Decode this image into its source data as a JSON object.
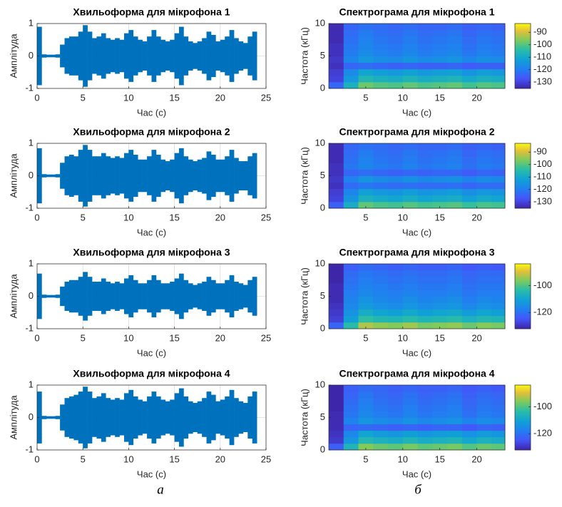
{
  "chart_data": [
    {
      "type": "waveform",
      "title": "Хвильоформа для мікрофона 1",
      "xlabel": "Час (с)",
      "ylabel": "Амплітуда",
      "color": "#0072bd",
      "xlim": [
        0,
        25
      ],
      "ylim": [
        -1,
        1
      ],
      "xticks": [
        0,
        5,
        10,
        15,
        20,
        25
      ],
      "yticks": [
        -1,
        0,
        1
      ],
      "grid": true,
      "x": [
        0,
        0.5,
        1,
        1.5,
        2,
        2.5,
        3,
        3.5,
        4,
        4.5,
        5,
        5.5,
        6,
        6.5,
        7,
        7.5,
        8,
        8.5,
        9,
        9.5,
        10,
        10.5,
        11,
        11.5,
        12,
        12.5,
        13,
        13.5,
        14,
        14.5,
        15,
        15.5,
        16,
        16.5,
        17,
        17.5,
        18,
        18.5,
        19,
        19.5,
        20,
        20.5,
        21,
        21.5,
        22,
        22.5,
        23,
        23.5
      ],
      "values": [
        0.9,
        0.05,
        0.04,
        0.04,
        0.05,
        0.35,
        0.55,
        0.6,
        0.6,
        0.75,
        0.95,
        0.75,
        0.55,
        0.6,
        0.7,
        0.55,
        0.5,
        0.55,
        0.5,
        0.7,
        0.8,
        0.6,
        0.5,
        0.45,
        0.6,
        0.8,
        0.6,
        0.5,
        0.45,
        0.5,
        0.7,
        0.9,
        0.6,
        0.45,
        0.4,
        0.45,
        0.55,
        0.75,
        0.65,
        0.45,
        0.5,
        0.6,
        0.8,
        0.55,
        0.45,
        0.4,
        0.6,
        0.75
      ]
    },
    {
      "type": "waveform",
      "title": "Хвильоформа для мікрофона 2",
      "xlabel": "Час (с)",
      "ylabel": "Амплітуда",
      "color": "#0072bd",
      "xlim": [
        0,
        25
      ],
      "ylim": [
        -1,
        1
      ],
      "xticks": [
        0,
        5,
        10,
        15,
        20,
        25
      ],
      "yticks": [
        -1,
        0,
        1
      ],
      "grid": true,
      "x": [
        0,
        0.5,
        1,
        1.5,
        2,
        2.5,
        3,
        3.5,
        4,
        4.5,
        5,
        5.5,
        6,
        6.5,
        7,
        7.5,
        8,
        8.5,
        9,
        9.5,
        10,
        10.5,
        11,
        11.5,
        12,
        12.5,
        13,
        13.5,
        14,
        14.5,
        15,
        15.5,
        16,
        16.5,
        17,
        17.5,
        18,
        18.5,
        19,
        19.5,
        20,
        20.5,
        21,
        21.5,
        22,
        22.5,
        23,
        23.5
      ],
      "values": [
        0.85,
        0.05,
        0.04,
        0.04,
        0.05,
        0.4,
        0.6,
        0.65,
        0.6,
        0.8,
        0.95,
        0.8,
        0.6,
        0.6,
        0.7,
        0.6,
        0.55,
        0.6,
        0.55,
        0.7,
        0.8,
        0.65,
        0.5,
        0.5,
        0.6,
        0.8,
        0.65,
        0.5,
        0.45,
        0.5,
        0.7,
        0.85,
        0.6,
        0.5,
        0.45,
        0.5,
        0.55,
        0.75,
        0.65,
        0.5,
        0.5,
        0.6,
        0.8,
        0.55,
        0.45,
        0.45,
        0.6,
        0.7
      ]
    },
    {
      "type": "waveform",
      "title": "Хвильоформа для мікрофона 3",
      "xlabel": "Час (с)",
      "ylabel": "Амплітуда",
      "color": "#0072bd",
      "xlim": [
        0,
        25
      ],
      "ylim": [
        -1,
        1
      ],
      "xticks": [
        0,
        5,
        10,
        15,
        20,
        25
      ],
      "yticks": [
        -1,
        0,
        1
      ],
      "grid": true,
      "x": [
        0,
        0.5,
        1,
        1.5,
        2,
        2.5,
        3,
        3.5,
        4,
        4.5,
        5,
        5.5,
        6,
        6.5,
        7,
        7.5,
        8,
        8.5,
        9,
        9.5,
        10,
        10.5,
        11,
        11.5,
        12,
        12.5,
        13,
        13.5,
        14,
        14.5,
        15,
        15.5,
        16,
        16.5,
        17,
        17.5,
        18,
        18.5,
        19,
        19.5,
        20,
        20.5,
        21,
        21.5,
        22,
        22.5,
        23,
        23.5
      ],
      "values": [
        0.7,
        0.05,
        0.04,
        0.04,
        0.05,
        0.3,
        0.45,
        0.5,
        0.5,
        0.6,
        0.75,
        0.6,
        0.45,
        0.45,
        0.55,
        0.45,
        0.4,
        0.45,
        0.4,
        0.55,
        0.65,
        0.5,
        0.4,
        0.4,
        0.5,
        0.65,
        0.5,
        0.4,
        0.4,
        0.45,
        0.55,
        0.7,
        0.5,
        0.4,
        0.35,
        0.4,
        0.45,
        0.6,
        0.5,
        0.4,
        0.4,
        0.5,
        0.65,
        0.45,
        0.4,
        0.35,
        0.5,
        0.6
      ]
    },
    {
      "type": "waveform",
      "title": "Хвильоформа для мікрофона 4",
      "xlabel": "Час (с)",
      "ylabel": "Амплітуда",
      "color": "#0072bd",
      "xlim": [
        0,
        25
      ],
      "ylim": [
        -1,
        1
      ],
      "xticks": [
        0,
        5,
        10,
        15,
        20,
        25
      ],
      "yticks": [
        -1,
        0,
        1
      ],
      "grid": true,
      "x": [
        0,
        0.5,
        1,
        1.5,
        2,
        2.5,
        3,
        3.5,
        4,
        4.5,
        5,
        5.5,
        6,
        6.5,
        7,
        7.5,
        8,
        8.5,
        9,
        9.5,
        10,
        10.5,
        11,
        11.5,
        12,
        12.5,
        13,
        13.5,
        14,
        14.5,
        15,
        15.5,
        16,
        16.5,
        17,
        17.5,
        18,
        18.5,
        19,
        19.5,
        20,
        20.5,
        21,
        21.5,
        22,
        22.5,
        23,
        23.5
      ],
      "values": [
        0.8,
        0.05,
        0.04,
        0.04,
        0.05,
        0.4,
        0.6,
        0.65,
        0.7,
        0.8,
        0.95,
        0.8,
        0.6,
        0.65,
        0.75,
        0.6,
        0.55,
        0.6,
        0.55,
        0.75,
        0.85,
        0.65,
        0.55,
        0.5,
        0.65,
        0.8,
        0.65,
        0.55,
        0.5,
        0.55,
        0.75,
        0.9,
        0.65,
        0.5,
        0.45,
        0.5,
        0.6,
        0.8,
        0.7,
        0.5,
        0.55,
        0.65,
        0.85,
        0.6,
        0.5,
        0.45,
        0.65,
        0.8
      ]
    },
    {
      "type": "heatmap",
      "title": "Спектрограма для мікрофона 1",
      "xlabel": "Час (с)",
      "ylabel": "Частота (кГц)",
      "colormap": "parula",
      "xlim": [
        0,
        23.8
      ],
      "ylim": [
        0,
        10
      ],
      "xticks": [
        5,
        10,
        15,
        20
      ],
      "yticks": [
        0,
        5,
        10
      ],
      "clim": [
        -135,
        -83
      ],
      "cticks": [
        -130,
        -120,
        -110,
        -100,
        -90
      ],
      "x": [
        0,
        2,
        4,
        6,
        8,
        10,
        12,
        14,
        16,
        18,
        20,
        22,
        23.8
      ],
      "y": [
        0,
        1,
        2,
        3,
        4,
        5,
        6,
        7,
        8,
        9,
        10
      ],
      "values": [
        [
          -124,
          -108,
          -98,
          -100,
          -101,
          -99,
          -101,
          -100,
          -99,
          -102,
          -100,
          -101
        ],
        [
          -130,
          -114,
          -106,
          -108,
          -109,
          -107,
          -109,
          -108,
          -107,
          -110,
          -108,
          -109
        ],
        [
          -131,
          -117,
          -111,
          -113,
          -114,
          -112,
          -114,
          -113,
          -112,
          -115,
          -113,
          -114
        ],
        [
          -133,
          -124,
          -123,
          -124,
          -125,
          -124,
          -125,
          -125,
          -124,
          -126,
          -125,
          -125
        ],
        [
          -132,
          -118,
          -114,
          -116,
          -117,
          -115,
          -117,
          -116,
          -115,
          -118,
          -116,
          -117
        ],
        [
          -133,
          -120,
          -117,
          -119,
          -120,
          -118,
          -120,
          -119,
          -118,
          -121,
          -119,
          -120
        ],
        [
          -133,
          -121,
          -118,
          -120,
          -121,
          -119,
          -121,
          -120,
          -119,
          -122,
          -120,
          -121
        ],
        [
          -134,
          -122,
          -119,
          -121,
          -122,
          -120,
          -122,
          -121,
          -120,
          -123,
          -121,
          -122
        ],
        [
          -134,
          -123,
          -120,
          -122,
          -123,
          -121,
          -123,
          -122,
          -121,
          -124,
          -122,
          -123
        ],
        [
          -134,
          -124,
          -122,
          -123,
          -124,
          -123,
          -124,
          -124,
          -123,
          -125,
          -124,
          -125
        ]
      ]
    },
    {
      "type": "heatmap",
      "title": "Спектрограма для мікрофона 2",
      "xlabel": "Час (с)",
      "ylabel": "Частота (кГц)",
      "colormap": "parula",
      "xlim": [
        0,
        23.8
      ],
      "ylim": [
        0,
        10
      ],
      "xticks": [
        5,
        10,
        15,
        20
      ],
      "yticks": [
        0,
        5,
        10
      ],
      "clim": [
        -135,
        -83
      ],
      "cticks": [
        -130,
        -120,
        -110,
        -100,
        -90
      ],
      "x": [
        0,
        2,
        4,
        6,
        8,
        10,
        12,
        14,
        16,
        18,
        20,
        22,
        23.8
      ],
      "y": [
        0,
        1,
        2,
        3,
        4,
        5,
        6,
        7,
        8,
        9,
        10
      ],
      "values": [
        [
          -125,
          -109,
          -99,
          -101,
          -102,
          -100,
          -102,
          -101,
          -100,
          -103,
          -101,
          -102
        ],
        [
          -130,
          -115,
          -108,
          -110,
          -111,
          -109,
          -111,
          -110,
          -109,
          -112,
          -110,
          -111
        ],
        [
          -131,
          -118,
          -112,
          -114,
          -115,
          -113,
          -115,
          -114,
          -113,
          -116,
          -114,
          -115
        ],
        [
          -133,
          -123,
          -121,
          -122,
          -123,
          -122,
          -123,
          -123,
          -122,
          -124,
          -123,
          -123
        ],
        [
          -132,
          -119,
          -115,
          -117,
          -118,
          -116,
          -118,
          -117,
          -116,
          -119,
          -117,
          -118
        ],
        [
          -133,
          -124,
          -123,
          -124,
          -125,
          -124,
          -125,
          -124,
          -124,
          -126,
          -124,
          -125
        ],
        [
          -133,
          -121,
          -118,
          -120,
          -121,
          -119,
          -121,
          -120,
          -119,
          -122,
          -120,
          -121
        ],
        [
          -134,
          -122,
          -119,
          -121,
          -122,
          -120,
          -122,
          -121,
          -120,
          -123,
          -121,
          -122
        ],
        [
          -134,
          -123,
          -120,
          -122,
          -123,
          -121,
          -123,
          -122,
          -121,
          -124,
          -122,
          -123
        ],
        [
          -134,
          -124,
          -122,
          -123,
          -124,
          -123,
          -124,
          -124,
          -123,
          -125,
          -124,
          -125
        ]
      ]
    },
    {
      "type": "heatmap",
      "title": "Спектрограма для мікрофона 3",
      "xlabel": "Час (с)",
      "ylabel": "Частота (кГц)",
      "colormap": "parula",
      "xlim": [
        0,
        23.8
      ],
      "ylim": [
        0,
        10
      ],
      "xticks": [
        5,
        10,
        15,
        20
      ],
      "yticks": [
        0,
        5,
        10
      ],
      "clim": [
        -132,
        -84
      ],
      "cticks": [
        -120,
        -100
      ],
      "x": [
        0,
        2,
        4,
        6,
        8,
        10,
        12,
        14,
        16,
        18,
        20,
        22,
        23.8
      ],
      "y": [
        0,
        1,
        2,
        3,
        4,
        5,
        6,
        7,
        8,
        9,
        10
      ],
      "values": [
        [
          -122,
          -104,
          -93,
          -95,
          -96,
          -94,
          -97,
          -96,
          -95,
          -98,
          -96,
          -97
        ],
        [
          -128,
          -111,
          -103,
          -105,
          -106,
          -104,
          -106,
          -105,
          -104,
          -107,
          -105,
          -106
        ],
        [
          -129,
          -114,
          -108,
          -110,
          -111,
          -109,
          -111,
          -110,
          -109,
          -112,
          -110,
          -111
        ],
        [
          -130,
          -116,
          -112,
          -114,
          -115,
          -113,
          -115,
          -114,
          -113,
          -116,
          -114,
          -115
        ],
        [
          -131,
          -117,
          -114,
          -116,
          -117,
          -115,
          -117,
          -116,
          -115,
          -118,
          -116,
          -117
        ],
        [
          -131,
          -118,
          -116,
          -117,
          -118,
          -117,
          -118,
          -118,
          -117,
          -119,
          -118,
          -118
        ],
        [
          -131,
          -119,
          -117,
          -118,
          -119,
          -118,
          -119,
          -119,
          -118,
          -120,
          -119,
          -119
        ],
        [
          -132,
          -120,
          -118,
          -119,
          -120,
          -119,
          -120,
          -120,
          -119,
          -121,
          -120,
          -120
        ],
        [
          -132,
          -121,
          -119,
          -120,
          -121,
          -120,
          -121,
          -121,
          -120,
          -122,
          -121,
          -121
        ],
        [
          -132,
          -123,
          -121,
          -122,
          -123,
          -122,
          -123,
          -123,
          -122,
          -124,
          -123,
          -124
        ]
      ]
    },
    {
      "type": "heatmap",
      "title": "Спектрограма для мікрофона 4",
      "xlabel": "Час (с)",
      "ylabel": "Частота (кГц)",
      "colormap": "parula",
      "xlim": [
        0,
        23.8
      ],
      "ylim": [
        0,
        10
      ],
      "xticks": [
        5,
        10,
        15,
        20
      ],
      "yticks": [
        0,
        5,
        10
      ],
      "clim": [
        -132,
        -84
      ],
      "cticks": [
        -120,
        -100
      ],
      "x": [
        0,
        2,
        4,
        6,
        8,
        10,
        12,
        14,
        16,
        18,
        20,
        22,
        23.8
      ],
      "y": [
        0,
        1,
        2,
        3,
        4,
        5,
        6,
        7,
        8,
        9,
        10
      ],
      "values": [
        [
          -123,
          -106,
          -96,
          -98,
          -99,
          -97,
          -99,
          -98,
          -97,
          -100,
          -98,
          -99
        ],
        [
          -129,
          -113,
          -105,
          -107,
          -108,
          -106,
          -108,
          -107,
          -106,
          -109,
          -107,
          -108
        ],
        [
          -130,
          -116,
          -110,
          -112,
          -113,
          -111,
          -113,
          -112,
          -111,
          -114,
          -112,
          -113
        ],
        [
          -131,
          -122,
          -121,
          -122,
          -123,
          -122,
          -123,
          -122,
          -122,
          -124,
          -122,
          -123
        ],
        [
          -131,
          -117,
          -113,
          -115,
          -116,
          -114,
          -116,
          -115,
          -114,
          -117,
          -115,
          -116
        ],
        [
          -131,
          -119,
          -116,
          -118,
          -119,
          -117,
          -119,
          -118,
          -117,
          -120,
          -118,
          -119
        ],
        [
          -132,
          -120,
          -117,
          -119,
          -120,
          -118,
          -120,
          -119,
          -118,
          -121,
          -119,
          -120
        ],
        [
          -132,
          -121,
          -118,
          -120,
          -121,
          -119,
          -121,
          -120,
          -119,
          -122,
          -120,
          -121
        ],
        [
          -132,
          -122,
          -119,
          -121,
          -122,
          -120,
          -122,
          -121,
          -120,
          -123,
          -121,
          -122
        ],
        [
          -132,
          -123,
          -121,
          -122,
          -123,
          -122,
          -123,
          -123,
          -122,
          -124,
          -123,
          -124
        ]
      ]
    }
  ],
  "panel_labels": [
    "а",
    "б"
  ]
}
